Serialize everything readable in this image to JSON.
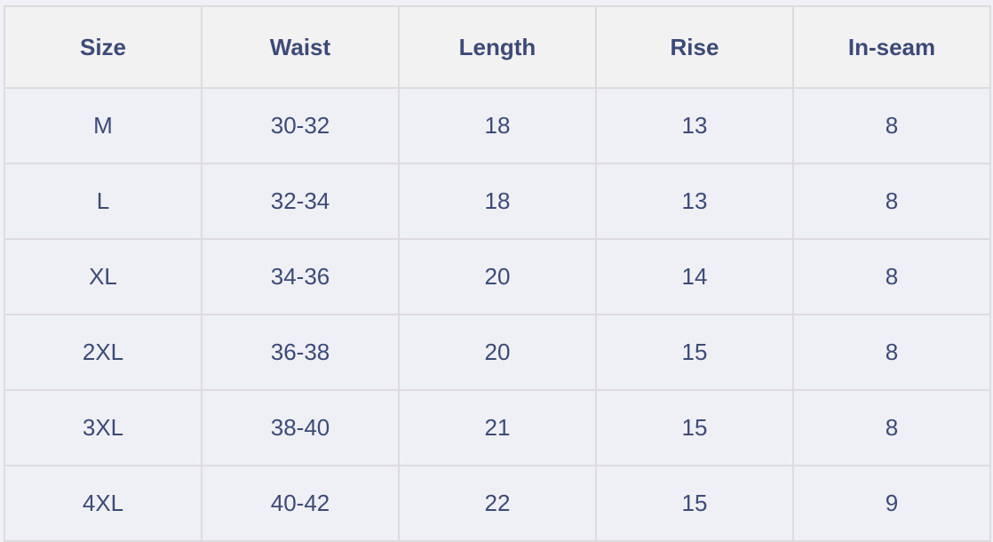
{
  "table": {
    "headers": [
      "Size",
      "Waist",
      "Length",
      "Rise",
      "In-seam"
    ],
    "rows": [
      [
        "M",
        "30-32",
        "18",
        "13",
        "8"
      ],
      [
        "L",
        "32-34",
        "18",
        "13",
        "8"
      ],
      [
        "XL",
        "34-36",
        "20",
        "14",
        "8"
      ],
      [
        "2XL",
        "36-38",
        "20",
        "15",
        "8"
      ],
      [
        "3XL",
        "38-40",
        "21",
        "15",
        "8"
      ],
      [
        "4XL",
        "40-42",
        "22",
        "15",
        "9"
      ]
    ]
  }
}
